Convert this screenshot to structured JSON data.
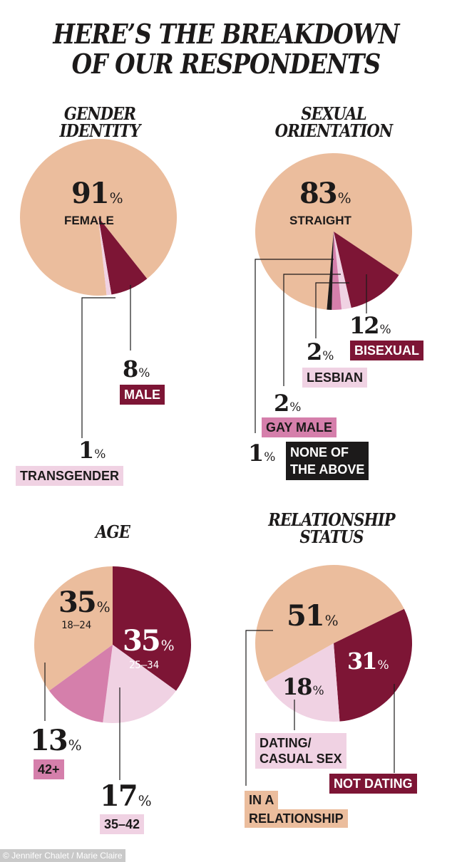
{
  "headline": [
    "HERE’S THE BREAKDOWN",
    "OF OUR RESPONDENTS"
  ],
  "colors": {
    "peach": "#ebbd9d",
    "maroon": "#7d1535",
    "light_pink": "#f0d2e3",
    "medium_pink": "#d57fab",
    "black": "#1c1a1a"
  },
  "chart_data": [
    {
      "type": "pie",
      "title": "GENDER IDENTITY",
      "title_lines": [
        "GENDER",
        "IDENTITY"
      ],
      "slices": [
        {
          "label": "FEMALE",
          "value": 91,
          "pct": "91",
          "color": "#ebbd9d"
        },
        {
          "label": "MALE",
          "value": 8,
          "pct": "8",
          "color": "#7d1535"
        },
        {
          "label": "TRANSGENDER",
          "value": 1,
          "pct": "1",
          "color": "#f0d2e3"
        }
      ]
    },
    {
      "type": "pie",
      "title": "SEXUAL ORIENTATION",
      "title_lines": [
        "SEXUAL",
        "ORIENTATION"
      ],
      "slices": [
        {
          "label": "STRAIGHT",
          "value": 83,
          "pct": "83",
          "color": "#ebbd9d"
        },
        {
          "label": "BISEXUAL",
          "value": 12,
          "pct": "12",
          "color": "#7d1535"
        },
        {
          "label": "LESBIAN",
          "value": 2,
          "pct": "2",
          "color": "#f0d2e3"
        },
        {
          "label": "GAY MALE",
          "value": 2,
          "pct": "2",
          "color": "#d57fab"
        },
        {
          "label": "NONE OF THE ABOVE",
          "label_lines": [
            "NONE OF",
            "THE ABOVE"
          ],
          "value": 1,
          "pct": "1",
          "color": "#1c1a1a"
        }
      ]
    },
    {
      "type": "pie",
      "title": "AGE",
      "title_lines": [
        "AGE"
      ],
      "slices": [
        {
          "label": "18–24",
          "value": 35,
          "pct": "35",
          "color": "#ebbd9d"
        },
        {
          "label": "25–34",
          "value": 35,
          "pct": "35",
          "color": "#7d1535"
        },
        {
          "label": "35–42",
          "value": 17,
          "pct": "17",
          "color": "#f0d2e3"
        },
        {
          "label": "42+",
          "value": 13,
          "pct": "13",
          "color": "#d57fab"
        }
      ]
    },
    {
      "type": "pie",
      "title": "RELATIONSHIP STATUS",
      "title_lines": [
        "RELATIONSHIP",
        "STATUS"
      ],
      "slices": [
        {
          "label": "IN A RELATIONSHIP",
          "label_lines": [
            "IN A",
            "RELATIONSHIP"
          ],
          "value": 51,
          "pct": "51",
          "color": "#ebbd9d"
        },
        {
          "label": "NOT DATING",
          "value": 31,
          "pct": "31",
          "color": "#7d1535"
        },
        {
          "label": "DATING/ CASUAL SEX",
          "label_lines": [
            "DATING/",
            "CASUAL SEX"
          ],
          "value": 18,
          "pct": "18",
          "color": "#f0d2e3"
        }
      ]
    }
  ],
  "percent_sign": "%",
  "credit": "© Jennifer Chalet / Marie Claire"
}
